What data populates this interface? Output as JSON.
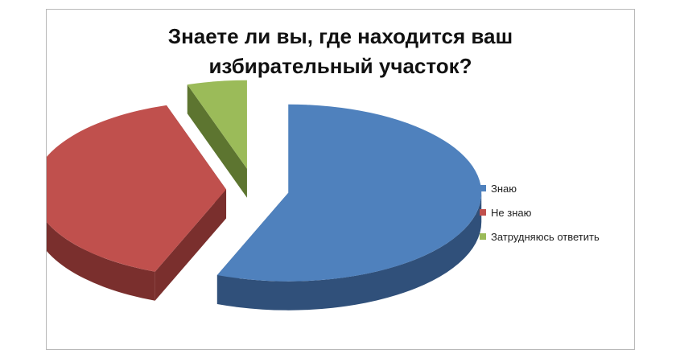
{
  "chart_data": {
    "type": "pie",
    "style": "3d-exploded",
    "title_lines": [
      "Знаете ли вы, где находится ваш",
      "избирательный участок?"
    ],
    "categories": [
      "Знаю",
      "Не знаю",
      "Затрудняюсь ответить"
    ],
    "values": [
      56,
      39,
      5
    ],
    "unit": "%",
    "colors": [
      "#4f81bd",
      "#c0504d",
      "#9bbb59"
    ],
    "side_colors": [
      "#30507a",
      "#7a2f2d",
      "#5d7530"
    ],
    "legend_position": "right",
    "data_labels": false
  }
}
